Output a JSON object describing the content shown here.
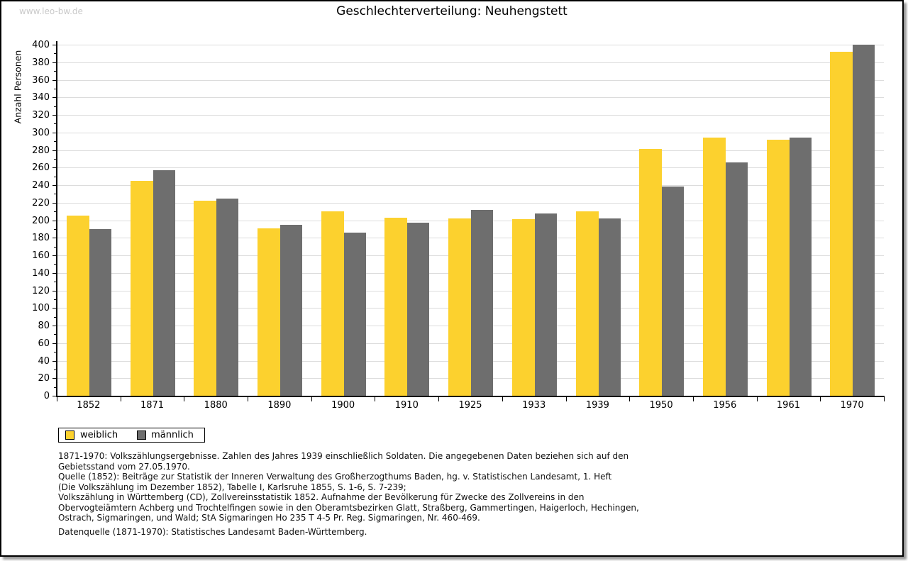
{
  "watermark": "www.leo-bw.de",
  "title": "Geschlechterverteilung: Neuhengstett",
  "y_axis_label": "Anzahl Personen",
  "footnote_lines": [
    "1871-1970: Volkszählungsergebnisse. Zahlen des Jahres 1939 einschließlich Soldaten. Die angegebenen Daten beziehen sich auf den",
    "Gebietsstand vom 27.05.1970.",
    "Quelle (1852): Beiträge zur Statistik der Inneren Verwaltung des Großherzogthums Baden, hg. v. Statistischen Landesamt, 1. Heft",
    "(Die Volkszählung im Dezember 1852), Tabelle I, Karlsruhe 1855, S. 1-6, S. 7-239;",
    "Volkszählung in Württemberg (CD), Zollvereinsstatistik 1852. Aufnahme der Bevölkerung für Zwecke des Zollvereins in den",
    "Obervogteiämtern Achberg und Trochtelfingen sowie in den Oberamtsbezirken Glatt, Straßberg, Gammertingen, Haigerloch, Hechingen,",
    "Ostrach, Sigmaringen, und Wald; StA Sigmaringen Ho 235 T 4-5 Pr. Reg. Sigmaringen, Nr. 460-469."
  ],
  "datasource_line": "Datenquelle (1871-1970): Statistisches Landesamt Baden-Württemberg.",
  "colors": {
    "weiblich": "#fcd12e",
    "maennlich": "#6e6e6e",
    "gridline": "#dcdcdc",
    "watermark": "#c9c9c9",
    "axis": "#000000"
  },
  "chart_data": {
    "type": "bar",
    "title": "Geschlechterverteilung: Neuhengstett",
    "xlabel": "",
    "ylabel": "Anzahl Personen",
    "categories": [
      "1852",
      "1871",
      "1880",
      "1890",
      "1900",
      "1910",
      "1925",
      "1933",
      "1939",
      "1950",
      "1956",
      "1961",
      "1970"
    ],
    "series": [
      {
        "name": "weiblich",
        "color": "#fcd12e",
        "values": [
          205,
          245,
          222,
          191,
          210,
          203,
          202,
          201,
          210,
          281,
          294,
          292,
          392
        ]
      },
      {
        "name": "männlich",
        "color": "#6e6e6e",
        "values": [
          190,
          257,
          225,
          195,
          186,
          197,
          212,
          208,
          202,
          238,
          266,
          294,
          400
        ]
      }
    ],
    "ylim": [
      0,
      400
    ],
    "ytick_step": 20,
    "yticks": [
      0,
      20,
      40,
      60,
      80,
      100,
      120,
      140,
      160,
      180,
      200,
      220,
      240,
      260,
      280,
      300,
      320,
      340,
      360,
      380,
      400
    ],
    "minor_tick_step": 10,
    "grid": true,
    "legend_position": "bottom-left"
  }
}
